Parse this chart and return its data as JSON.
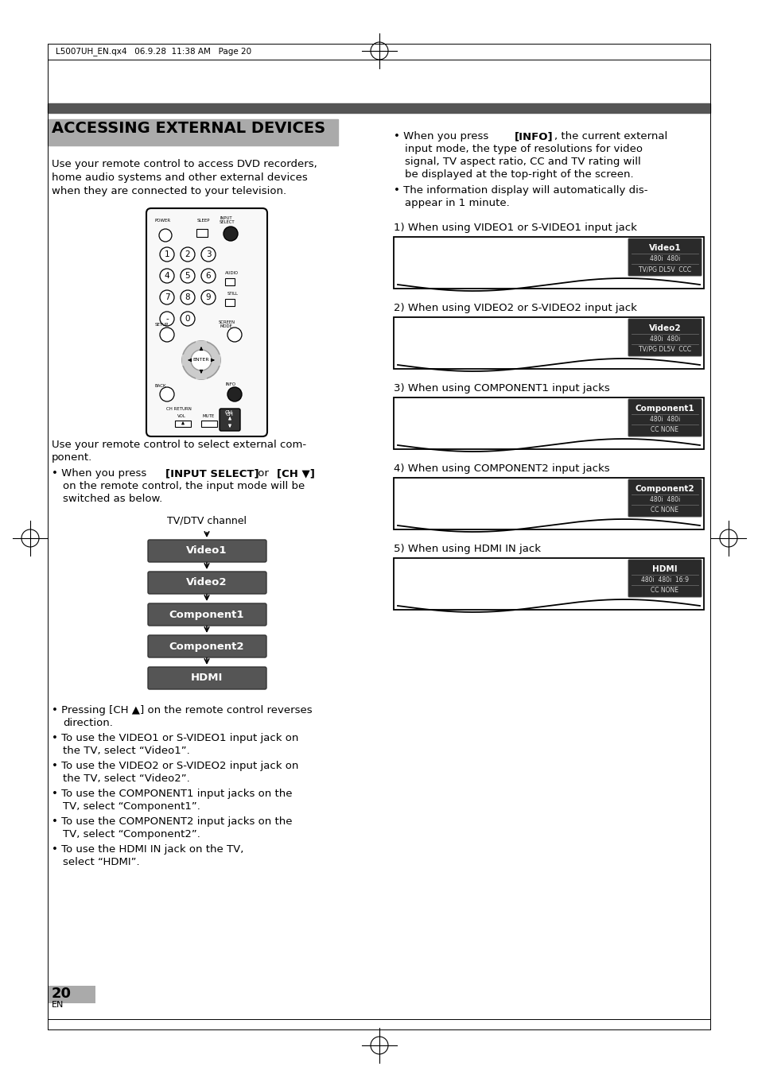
{
  "page_header": "L5007UH_EN.qx4   06.9.28  11:38 AM   Page 20",
  "title": "ACCESSING EXTERNAL DEVICES",
  "title_bg_color": "#aaaaaa",
  "section_bar_color": "#555555",
  "body_left_col": [
    "Use your remote control to access DVD recorders,",
    "home audio systems and other external devices",
    "when they are connected to your television."
  ],
  "flow_label": "TV/DTV channel",
  "flow_boxes": [
    "Video1",
    "Video2",
    "Component1",
    "Component2",
    "HDMI"
  ],
  "flow_box_color": "#555555",
  "left_bullets": [
    {
      "line1": "Pressing [CH ▲] on the remote control reverses",
      "line2": "direction.",
      "bold": "none"
    },
    {
      "line1": "To use the VIDEO1 or S-VIDEO1 input jack on",
      "line2": "the TV, select “Video1”.",
      "bold": "none"
    },
    {
      "line1": "To use the VIDEO2 or S-VIDEO2 input jack on",
      "line2": "the TV, select “Video2”.",
      "bold": "none"
    },
    {
      "line1": "To use the COMPONENT1 input jacks on the",
      "line2": "TV, select “Component1”.",
      "bold": "none"
    },
    {
      "line1": "To use the COMPONENT2 input jacks on the",
      "line2": "TV, select “Component2”.",
      "bold": "none"
    },
    {
      "line1": "To use the HDMI IN jack on the TV,",
      "line2": "select “HDMI”.",
      "bold": "none"
    }
  ],
  "right_sections": [
    {
      "label": "1) When using VIDEO1 or S-VIDEO1 input jack",
      "box_label": "Video1",
      "line1": "480i  480i",
      "line2": "TV/PG DL5V  CCC"
    },
    {
      "label": "2) When using VIDEO2 or S-VIDEO2 input jack",
      "box_label": "Video2",
      "line1": "480i  480i",
      "line2": "TV/PG DL5V  CCC"
    },
    {
      "label": "3) When using COMPONENT1 input jacks",
      "box_label": "Component1",
      "line1": "480i  480i",
      "line2": "CC NONE"
    },
    {
      "label": "4) When using COMPONENT2 input jacks",
      "box_label": "Component2",
      "line1": "480i  480i",
      "line2": "CC NONE"
    },
    {
      "label": "5) When using HDMI IN jack",
      "box_label": "HDMI",
      "line1": "480i  480i  16:9",
      "line2": "CC NONE"
    }
  ],
  "page_number": "20",
  "page_lang": "EN",
  "bg_color": "#ffffff"
}
